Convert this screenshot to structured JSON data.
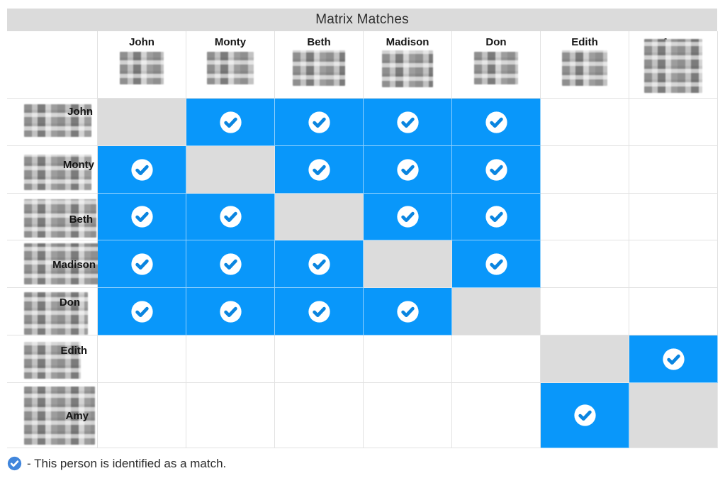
{
  "title": "Matrix Matches",
  "people": [
    "John",
    "Monty",
    "Beth",
    "Madison",
    "Don",
    "Edith",
    "Amy"
  ],
  "matrix": [
    [
      "self",
      "match",
      "match",
      "match",
      "match",
      "none",
      "none"
    ],
    [
      "match",
      "self",
      "match",
      "match",
      "match",
      "none",
      "none"
    ],
    [
      "match",
      "match",
      "self",
      "match",
      "match",
      "none",
      "none"
    ],
    [
      "match",
      "match",
      "match",
      "self",
      "match",
      "none",
      "none"
    ],
    [
      "match",
      "match",
      "match",
      "match",
      "self",
      "none",
      "none"
    ],
    [
      "none",
      "none",
      "none",
      "none",
      "none",
      "self",
      "match"
    ],
    [
      "none",
      "none",
      "none",
      "none",
      "none",
      "match",
      "self"
    ]
  ],
  "legend": {
    "text": "- This person is identified as a match."
  },
  "icons": {
    "match_cell": "check-circle-icon",
    "legend": "check-circle-icon"
  },
  "colors": {
    "match_blue": "#0997fa",
    "check_blue": "#0a85e0",
    "diagonal_gray": "#dcdcdc",
    "title_bar_gray": "#dbdbdb",
    "legend_icon_blue": "#4186dc",
    "grid_border": "#e2e2e2"
  }
}
